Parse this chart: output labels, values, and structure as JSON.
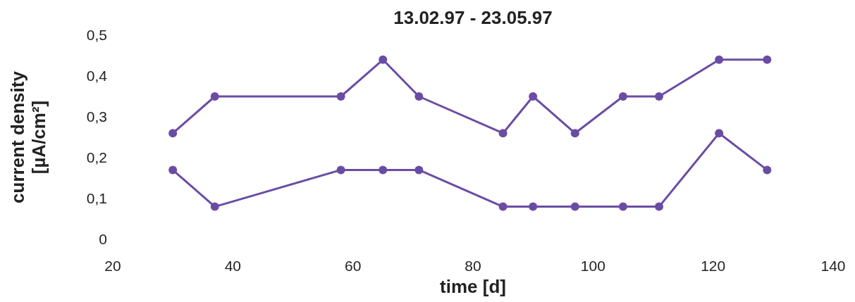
{
  "chart_data": {
    "type": "line",
    "title": "13.02.97 - 23.05.97",
    "xlabel": "time [d]",
    "ylabel": "current density\n[µA/cm²]",
    "x": [
      30,
      37,
      58,
      65,
      71,
      85,
      90,
      97,
      105,
      111,
      121,
      129
    ],
    "series": [
      {
        "color": "#6a4ca4",
        "values": [
          0.26,
          0.35,
          0.35,
          0.44,
          0.35,
          0.26,
          0.35,
          0.26,
          0.35,
          0.35,
          0.44,
          0.44
        ]
      },
      {
        "color": "#6a4ca4",
        "values": [
          0.17,
          0.08,
          0.17,
          0.17,
          0.17,
          0.08,
          0.08,
          0.08,
          0.08,
          0.08,
          0.26,
          0.17
        ]
      }
    ],
    "xlim": [
      20,
      140
    ],
    "xticks": [
      20,
      40,
      60,
      80,
      100,
      120,
      140
    ],
    "ylim": [
      0,
      0.5
    ],
    "yticks": [
      0,
      {
        "value": 0.1,
        "label": "0,1"
      },
      {
        "value": 0.2,
        "label": "0,2"
      },
      {
        "value": 0.3,
        "label": "0,3"
      },
      {
        "value": 0.4,
        "label": "0,4"
      },
      {
        "value": 0.5,
        "label": "0,5"
      }
    ],
    "marker": "circle",
    "line_style": "solid"
  }
}
